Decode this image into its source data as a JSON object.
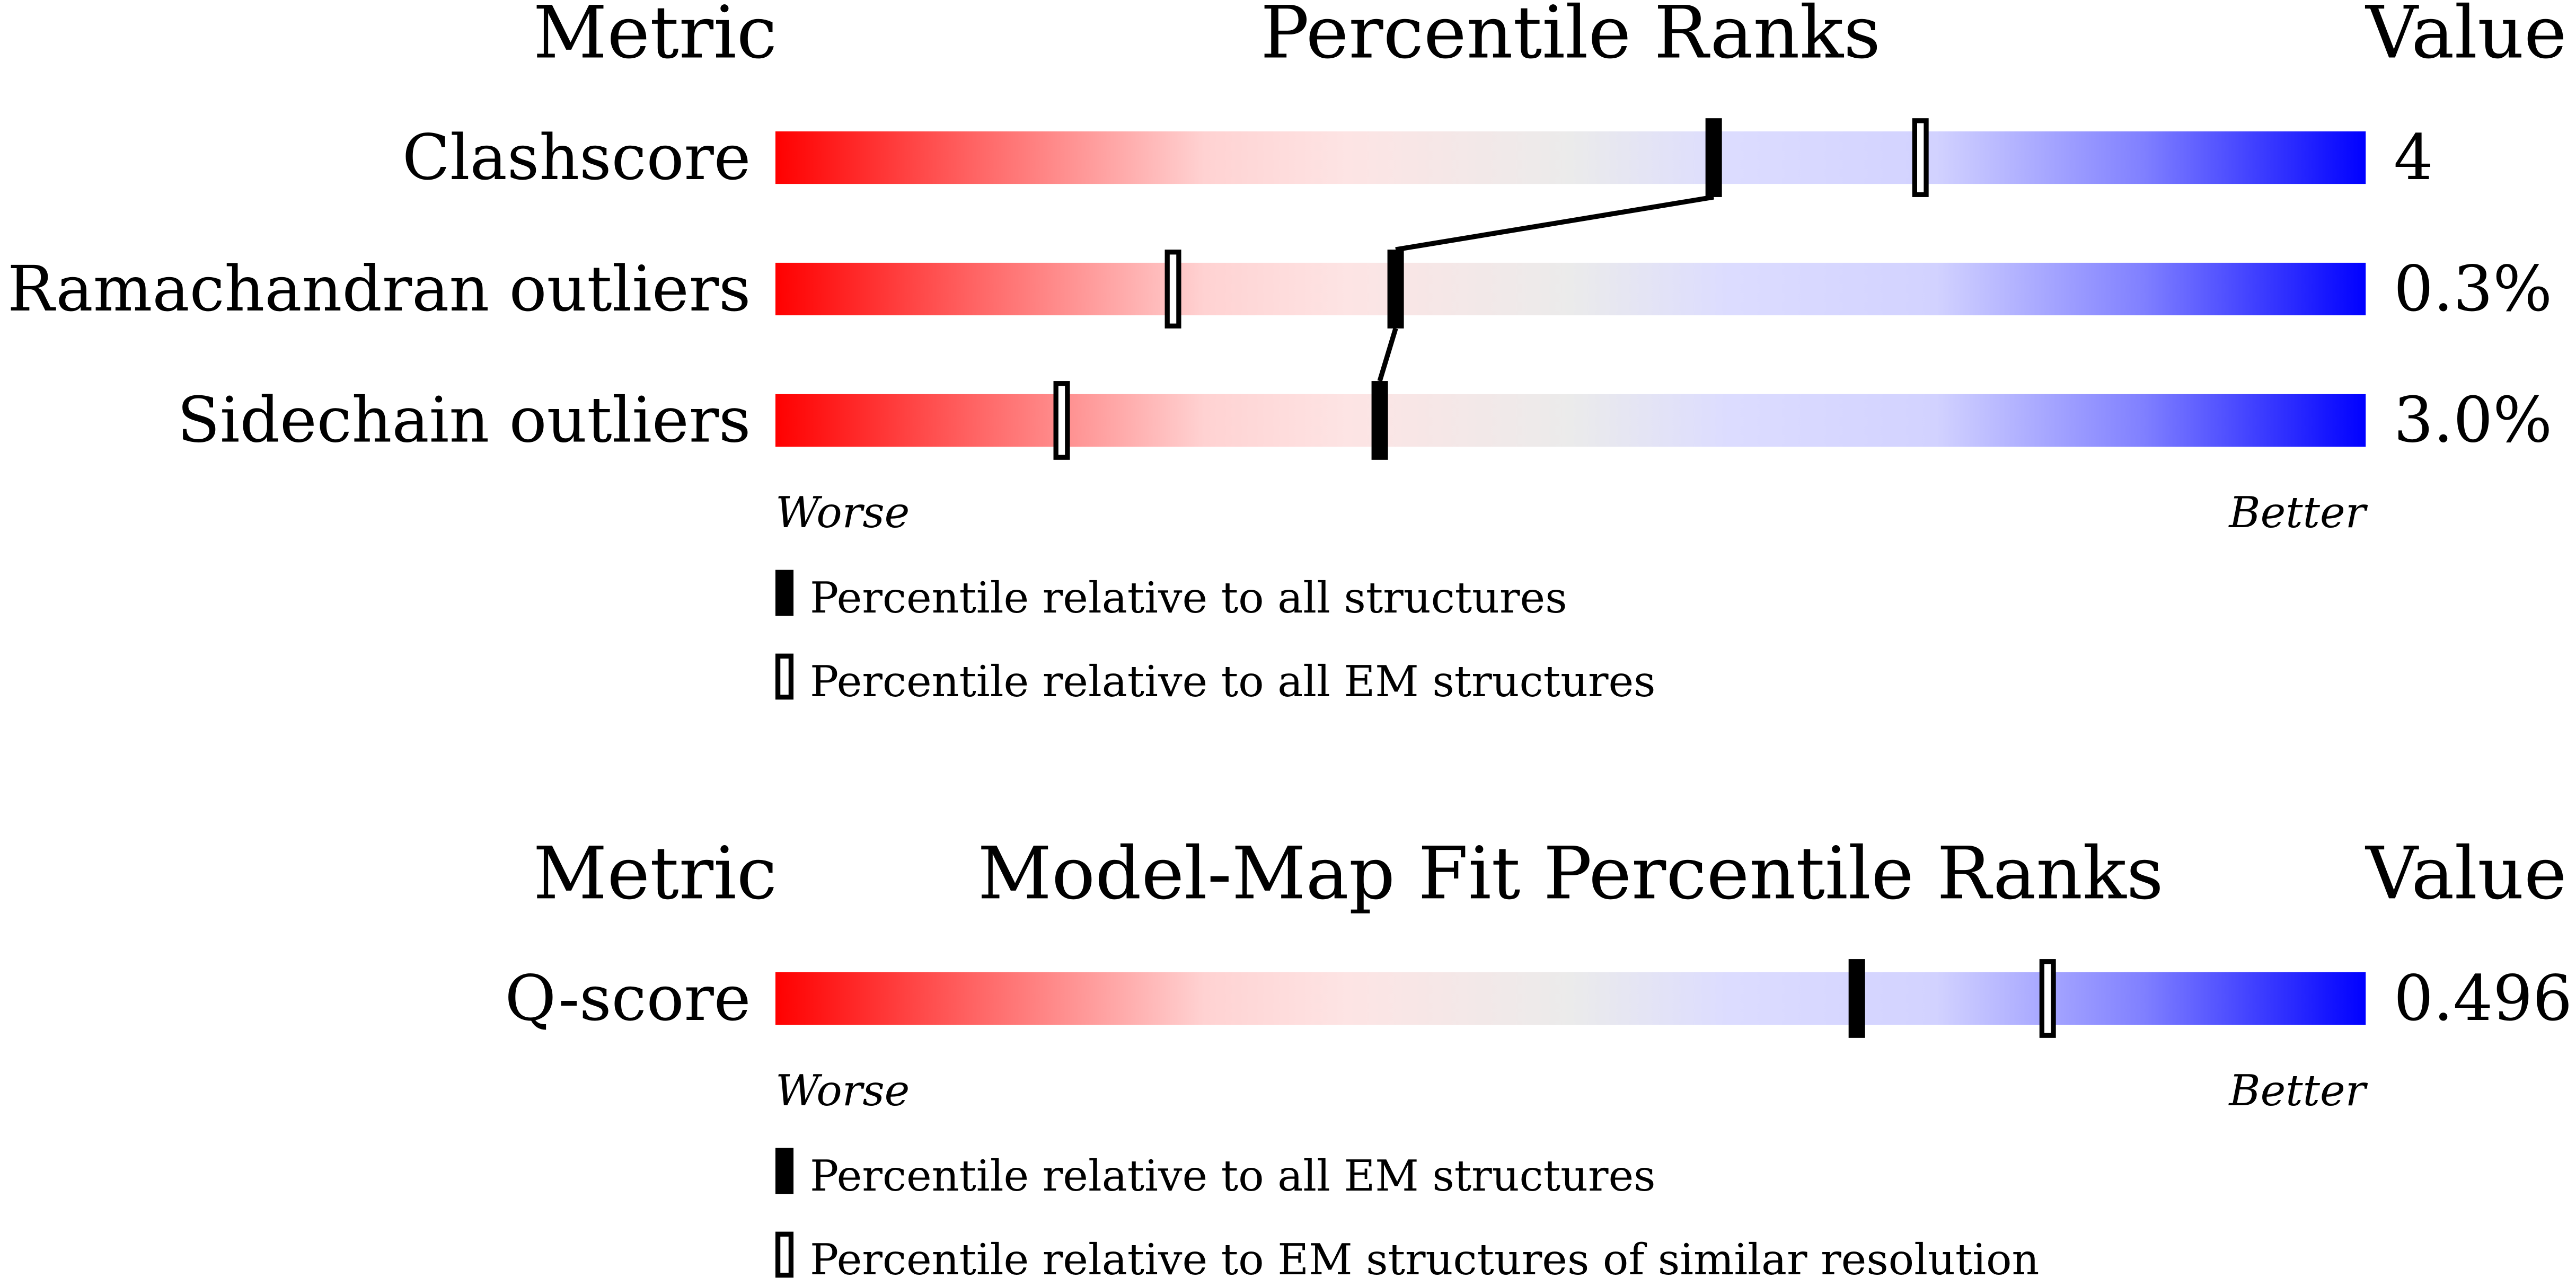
{
  "chart_data": [
    {
      "type": "percentile",
      "metric_header": "Metric",
      "title": "Percentile Ranks",
      "value_header": "Value",
      "categories": [
        "Clashscore",
        "Ramachandran outliers",
        "Sidechain outliers"
      ],
      "metric_values": [
        "4",
        "0.3%",
        "3.0%"
      ],
      "series": [
        {
          "name": "Percentile relative to all structures",
          "style": "filled",
          "color": "#000000",
          "values": [
            59,
            39,
            38
          ]
        },
        {
          "name": "Percentile relative to all EM structures",
          "style": "open",
          "color": "#000000",
          "values": [
            72,
            25,
            18
          ]
        }
      ],
      "xlim": [
        0,
        100
      ],
      "low_label": "Worse",
      "high_label": "Better",
      "connect": true
    },
    {
      "type": "percentile",
      "metric_header": "Metric",
      "title": "Model-Map Fit Percentile Ranks",
      "value_header": "Value",
      "categories": [
        "Q-score"
      ],
      "metric_values": [
        "0.496"
      ],
      "series": [
        {
          "name": "Percentile relative to all EM structures",
          "style": "filled",
          "color": "#000000",
          "values": [
            68
          ]
        },
        {
          "name": "Percentile relative to EM structures of similar resolution",
          "style": "open",
          "color": "#000000",
          "values": [
            80
          ]
        }
      ],
      "xlim": [
        0,
        100
      ],
      "low_label": "Worse",
      "high_label": "Better",
      "connect": false
    }
  ]
}
